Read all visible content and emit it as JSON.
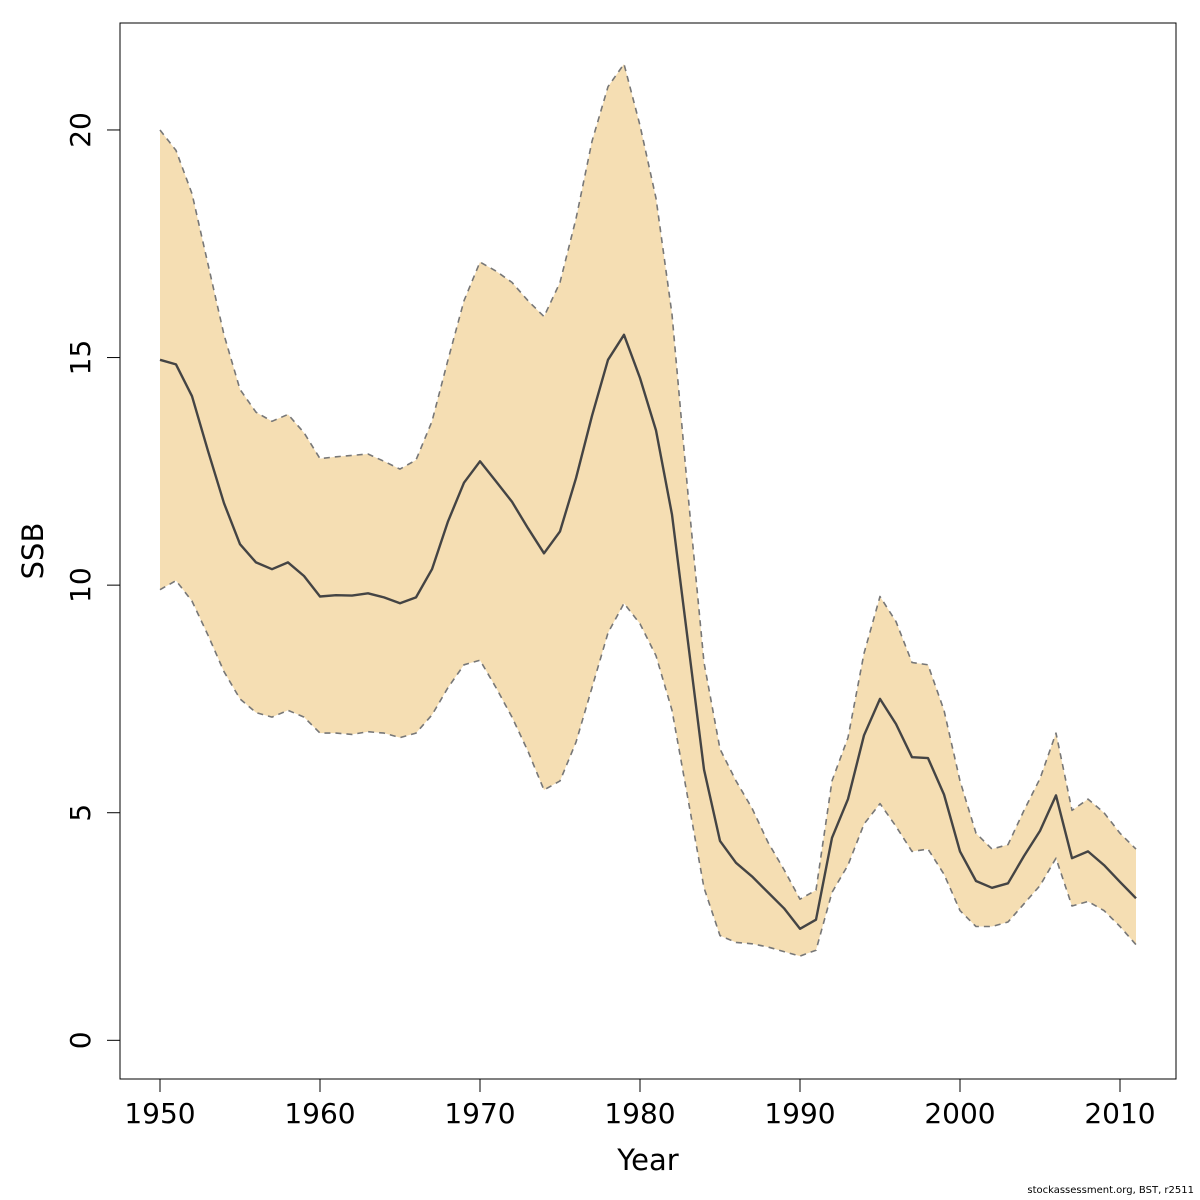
{
  "chart_data": {
    "type": "area",
    "xlabel": "Year",
    "ylabel": "SSB",
    "xlim": [
      1947.5,
      2013.5
    ],
    "ylim": [
      -0.85,
      22.35
    ],
    "x_ticks": [
      1950,
      1960,
      1970,
      1980,
      1990,
      2000,
      2010
    ],
    "y_ticks": [
      0,
      5,
      10,
      15,
      20
    ],
    "grid": false,
    "legend": "none",
    "colors": {
      "band": "#F5DEB3",
      "line": "#444444",
      "bounds": "#777777"
    },
    "x": [
      1950,
      1951,
      1952,
      1953,
      1954,
      1955,
      1956,
      1957,
      1958,
      1959,
      1960,
      1961,
      1962,
      1963,
      1964,
      1965,
      1966,
      1967,
      1968,
      1969,
      1970,
      1971,
      1972,
      1973,
      1974,
      1975,
      1976,
      1977,
      1978,
      1979,
      1980,
      1981,
      1982,
      1983,
      1984,
      1985,
      1986,
      1987,
      1988,
      1989,
      1990,
      1991,
      1992,
      1993,
      1994,
      1995,
      1996,
      1997,
      1998,
      1999,
      2000,
      2001,
      2002,
      2003,
      2004,
      2005,
      2006,
      2007,
      2008,
      2009,
      2010,
      2011
    ],
    "series": [
      {
        "role": "estimate",
        "values": [
          14.95,
          14.85,
          14.15,
          12.95,
          11.8,
          10.9,
          10.5,
          10.35,
          10.5,
          10.2,
          9.75,
          9.78,
          9.77,
          9.82,
          9.73,
          9.6,
          9.73,
          10.35,
          11.4,
          12.25,
          12.72,
          12.28,
          11.83,
          11.25,
          10.7,
          11.18,
          12.35,
          13.72,
          14.95,
          15.5,
          14.55,
          13.4,
          11.55,
          8.75,
          5.95,
          4.38,
          3.9,
          3.6,
          3.25,
          2.9,
          2.45,
          2.65,
          4.45,
          5.3,
          6.7,
          7.5,
          6.95,
          6.22,
          6.2,
          5.4,
          4.15,
          3.5,
          3.35,
          3.45,
          4.05,
          4.6,
          5.38,
          4.0,
          4.15,
          3.85,
          3.48,
          3.12
        ]
      },
      {
        "role": "upper",
        "values": [
          20.0,
          19.55,
          18.6,
          17.05,
          15.5,
          14.3,
          13.8,
          13.6,
          13.75,
          13.35,
          12.78,
          12.82,
          12.85,
          12.88,
          12.72,
          12.55,
          12.75,
          13.6,
          14.95,
          16.25,
          17.1,
          16.9,
          16.65,
          16.25,
          15.9,
          16.65,
          18.05,
          19.75,
          20.95,
          21.45,
          20.1,
          18.5,
          15.95,
          12.0,
          8.3,
          6.4,
          5.7,
          5.1,
          4.35,
          3.75,
          3.1,
          3.3,
          5.7,
          6.65,
          8.5,
          9.75,
          9.2,
          8.3,
          8.25,
          7.25,
          5.7,
          4.55,
          4.2,
          4.3,
          5.05,
          5.75,
          6.75,
          5.05,
          5.3,
          5.0,
          4.55,
          4.2
        ]
      },
      {
        "role": "lower",
        "values": [
          9.9,
          10.1,
          9.65,
          8.9,
          8.1,
          7.5,
          7.2,
          7.1,
          7.25,
          7.1,
          6.75,
          6.75,
          6.72,
          6.78,
          6.75,
          6.65,
          6.75,
          7.15,
          7.75,
          8.25,
          8.35,
          7.75,
          7.1,
          6.35,
          5.5,
          5.7,
          6.55,
          7.75,
          8.95,
          9.6,
          9.15,
          8.45,
          7.25,
          5.3,
          3.35,
          2.3,
          2.15,
          2.12,
          2.05,
          1.95,
          1.85,
          1.98,
          3.25,
          3.85,
          4.75,
          5.2,
          4.7,
          4.15,
          4.2,
          3.65,
          2.85,
          2.5,
          2.5,
          2.6,
          3.0,
          3.4,
          4.0,
          2.95,
          3.05,
          2.85,
          2.5,
          2.1
        ]
      }
    ]
  },
  "footnote": "stockassessment.org, BST, r2511"
}
